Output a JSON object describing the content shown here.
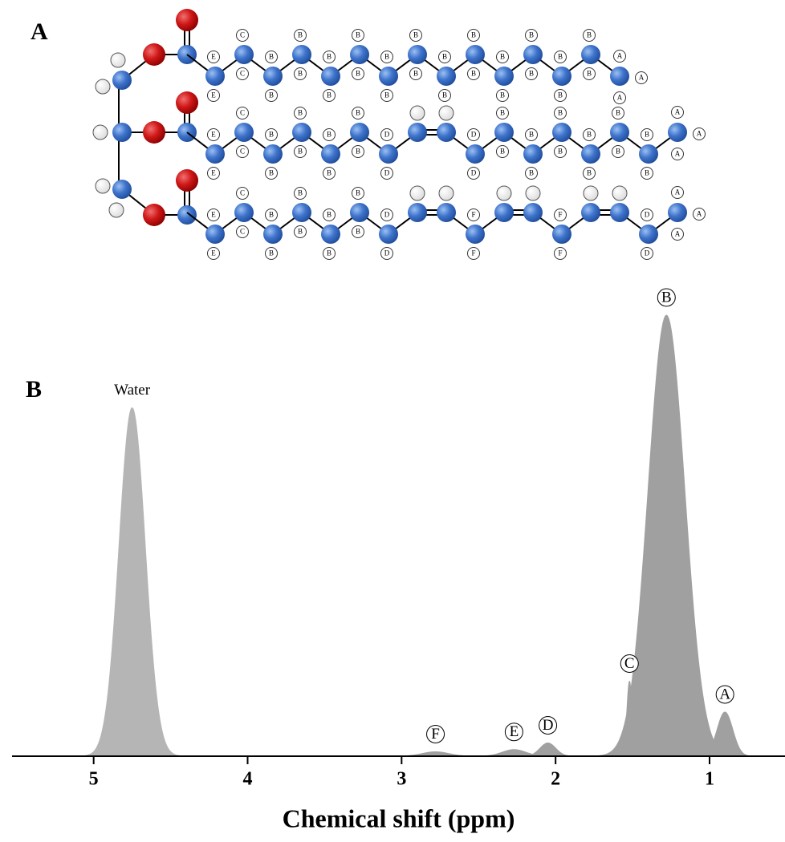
{
  "panel_labels": [
    "A",
    "B"
  ],
  "molecule": {
    "chains": [
      {
        "hydrogens": [
          [
            "E",
            "E"
          ],
          [
            "C",
            "C"
          ],
          [
            "B",
            "B"
          ],
          [
            "B",
            "B"
          ],
          [
            "B",
            "B"
          ],
          [
            "B",
            "B"
          ],
          [
            "B",
            "B"
          ],
          [
            "B",
            "B"
          ],
          [
            "B",
            "B"
          ],
          [
            "B",
            "B"
          ],
          [
            "B",
            "B"
          ],
          [
            "B",
            "B"
          ],
          [
            "B",
            "B"
          ],
          [
            "B",
            "B"
          ],
          [
            "A",
            "A",
            "A"
          ]
        ]
      },
      {
        "hydrogens": [
          [
            "E",
            "E"
          ],
          [
            "C",
            "C"
          ],
          [
            "B",
            "B"
          ],
          [
            "B",
            "B"
          ],
          [
            "B",
            "B"
          ],
          [
            "B",
            "B"
          ],
          [
            "D",
            "D"
          ],
          [],
          [],
          [
            "D",
            "D"
          ],
          [
            "B",
            "B"
          ],
          [
            "B",
            "B"
          ],
          [
            "B",
            "B"
          ],
          [
            "B",
            "B"
          ],
          [
            "B",
            "B"
          ],
          [
            "B",
            "B"
          ],
          [
            "A",
            "A",
            "A"
          ]
        ]
      },
      {
        "hydrogens": [
          [
            "E",
            "E"
          ],
          [
            "C",
            "C"
          ],
          [
            "B",
            "B"
          ],
          [
            "B",
            "B"
          ],
          [
            "B",
            "B"
          ],
          [
            "B",
            "B"
          ],
          [
            "D",
            "D"
          ],
          [],
          [],
          [
            "F",
            "F"
          ],
          [],
          [],
          [
            "F",
            "F"
          ],
          [],
          [],
          [
            "D",
            "D"
          ],
          [
            "A",
            "A",
            "A"
          ]
        ]
      }
    ]
  },
  "chart_data": {
    "type": "spectrum",
    "xlabel": "Chemical shift (ppm)",
    "xlim": [
      5.53,
      0.51
    ],
    "xticks": [
      5,
      4,
      3,
      2,
      1
    ],
    "ylim": [
      0,
      100
    ],
    "peaks": [
      {
        "name": "Water",
        "shift": 4.75,
        "height": 79,
        "fwhm": 0.2,
        "color": "#b5b5b5"
      },
      {
        "name": "F",
        "shift": 2.78,
        "height": 1,
        "fwhm": 0.2,
        "color": "#a0a0a0"
      },
      {
        "name": "E",
        "shift": 2.27,
        "height": 1.5,
        "fwhm": 0.18,
        "color": "#a0a0a0"
      },
      {
        "name": "D",
        "shift": 2.05,
        "height": 3,
        "fwhm": 0.12,
        "color": "#a0a0a0"
      },
      {
        "name": "C",
        "shift": 1.52,
        "height": 17,
        "fwhm": 0.04,
        "color": "#a0a0a0"
      },
      {
        "name": "B",
        "shift": 1.28,
        "height": 100,
        "fwhm": 0.28,
        "color": "#a0a0a0"
      },
      {
        "name": "A",
        "shift": 0.9,
        "height": 10,
        "fwhm": 0.12,
        "color": "#a0a0a0"
      }
    ]
  }
}
